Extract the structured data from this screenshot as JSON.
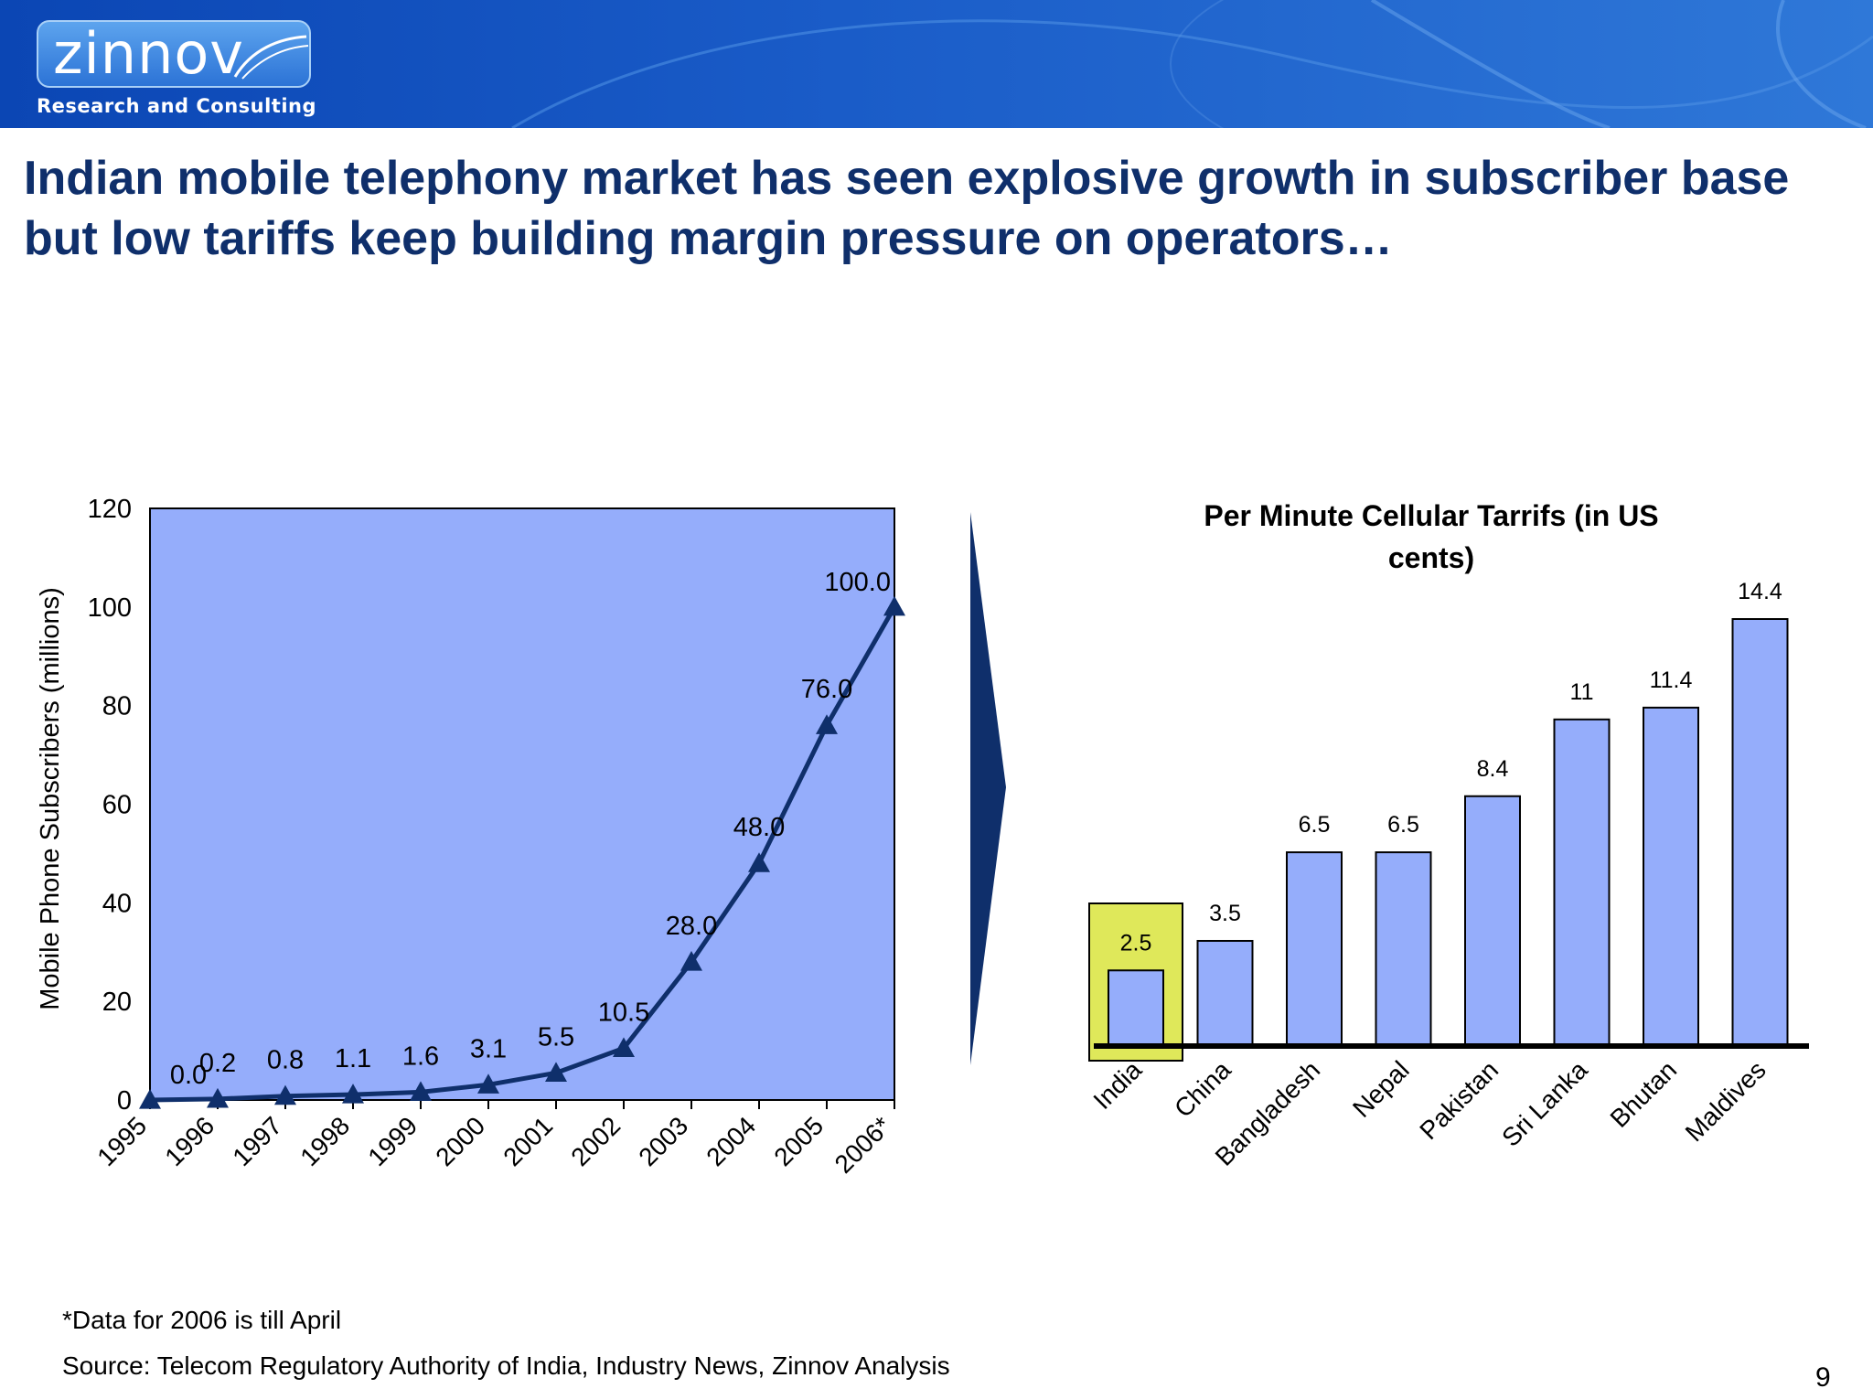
{
  "header": {
    "logo_text": "zinnov",
    "logo_subtitle": "Research and Consulting",
    "brand_color": "#0b46b4"
  },
  "slide": {
    "title": "Indian mobile telephony market has seen explosive growth in subscriber base but low tariffs keep building margin pressure on operators…",
    "footnote": "*Data for 2006 is till April",
    "source": "Source: Telecom Regulatory Authority of India, Industry News, Zinnov Analysis",
    "page_number": "9",
    "arrow_icon": "right-arrow-divider-icon"
  },
  "chart_data": [
    {
      "type": "line",
      "title": "",
      "xlabel": "",
      "ylabel": "Mobile Phone Subscribers (millions)",
      "x": [
        "1995",
        "1996",
        "1997",
        "1998",
        "1999",
        "2000",
        "2001",
        "2002",
        "2003",
        "2004",
        "2005",
        "2006*"
      ],
      "series": [
        {
          "values": [
            0.0,
            0.2,
            0.8,
            1.1,
            1.6,
            3.1,
            5.5,
            10.5,
            28.0,
            48.0,
            76.0,
            100.0
          ]
        }
      ],
      "data_labels": [
        "0.0",
        "0.2",
        "0.8",
        "1.1",
        "1.6",
        "3.1",
        "5.5",
        "10.5",
        "28.0",
        "48.0",
        "76.0",
        "100.0"
      ],
      "yticks": [
        "0",
        "20",
        "40",
        "60",
        "80",
        "100",
        "120"
      ],
      "ylim": [
        0,
        120
      ],
      "plot_background": "#95adfb",
      "line_color": "#0f2f6b",
      "marker": "triangle",
      "grid": false
    },
    {
      "type": "bar",
      "title": "Per Minute Cellular Tarrifs (in US cents)",
      "categories": [
        "India",
        "China",
        "Bangladesh",
        "Nepal",
        "Pakistan",
        "Sri Lanka",
        "Bhutan",
        "Maldives"
      ],
      "values": [
        2.5,
        3.5,
        6.5,
        6.5,
        8.4,
        11,
        11.4,
        14.4
      ],
      "data_labels": [
        "2.5",
        "3.5",
        "6.5",
        "6.5",
        "8.4",
        "11",
        "11.4",
        "14.4"
      ],
      "bar_color": "#95adfb",
      "highlight_category": "India",
      "highlight_color": "#dfe85a",
      "grid": false
    }
  ]
}
